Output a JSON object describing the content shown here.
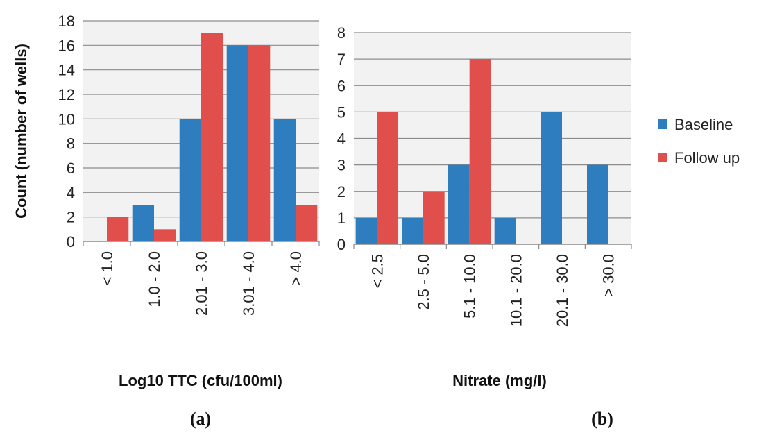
{
  "legend": {
    "entries": [
      {
        "name": "Baseline",
        "color": "#2e7ebf"
      },
      {
        "name": "Follow up",
        "color": "#e04f4b"
      }
    ]
  },
  "chart_data": [
    {
      "panel_label": "(a)",
      "type": "bar",
      "xlabel": "Log10 TTC (cfu/100ml)",
      "ylabel": "Count (number of wells)",
      "categories": [
        "< 1.0",
        "1.0 - 2.0",
        "2.01 - 3.0",
        "3.01 - 4.0",
        "> 4.0"
      ],
      "ylim": [
        0,
        18
      ],
      "yticks": [
        0,
        2,
        4,
        6,
        8,
        10,
        12,
        14,
        16,
        18
      ],
      "grid": true,
      "series": [
        {
          "name": "Baseline",
          "values": [
            0,
            3,
            10,
            16,
            10
          ]
        },
        {
          "name": "Follow up",
          "values": [
            2,
            1,
            17,
            16,
            3
          ]
        }
      ]
    },
    {
      "panel_label": "(b)",
      "type": "bar",
      "xlabel": "Nitrate (mg/l)",
      "ylabel": "",
      "categories": [
        "< 2.5",
        "2.5 - 5.0",
        "5.1 - 10.0",
        "10.1 - 20.0",
        "20.1 - 30.0",
        "> 30.0"
      ],
      "ylim": [
        0,
        8
      ],
      "yticks": [
        0,
        1,
        2,
        3,
        4,
        5,
        6,
        7,
        8
      ],
      "grid": true,
      "legend_position": "right",
      "series": [
        {
          "name": "Baseline",
          "values": [
            1,
            1,
            3,
            1,
            5,
            3
          ]
        },
        {
          "name": "Follow up",
          "values": [
            5,
            2,
            7,
            0,
            0,
            0
          ]
        }
      ]
    }
  ]
}
